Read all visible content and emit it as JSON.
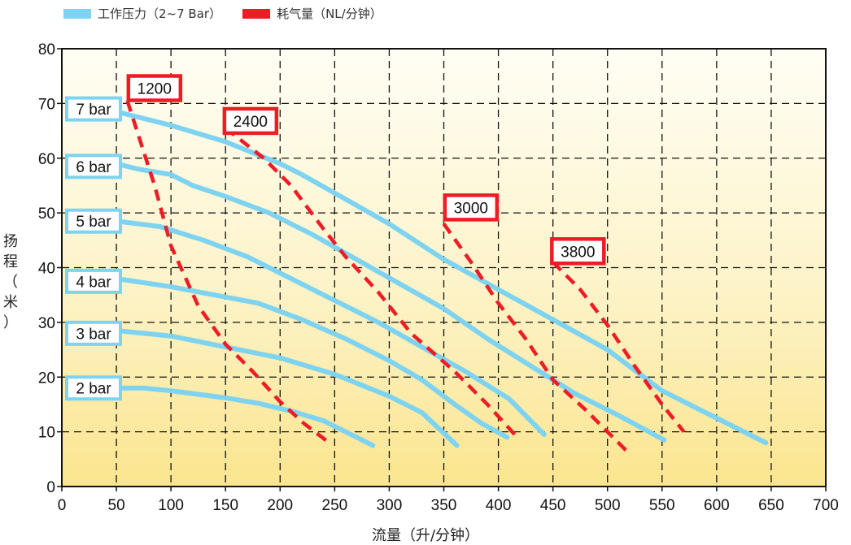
{
  "legend": {
    "pressure": {
      "label": "工作压力（2~7 Bar）",
      "color": "#7dd3f0"
    },
    "air": {
      "label": "耗气量（NL/分钟）",
      "color": "#ee1c25"
    }
  },
  "chart_data": {
    "type": "line",
    "xlabel": "流量（升/分钟）",
    "ylabel_chars": [
      "扬",
      "程",
      "（",
      "米",
      "）"
    ],
    "xlim": [
      0,
      700
    ],
    "ylim": [
      0,
      80
    ],
    "xticks": [
      "0",
      "50",
      "100",
      "150",
      "200",
      "250",
      "300",
      "350",
      "400",
      "450",
      "500",
      "550",
      "600",
      "650",
      "700"
    ],
    "yticks": [
      "0",
      "10",
      "20",
      "30",
      "40",
      "50",
      "60",
      "70",
      "80"
    ],
    "grid": true,
    "legend_position": "top-left",
    "series": [
      {
        "name": "2 bar",
        "group": "pressure",
        "label_at": [
          0,
          18
        ],
        "points": [
          [
            50,
            18
          ],
          [
            75,
            18
          ],
          [
            100,
            17.5
          ],
          [
            150,
            16.2
          ],
          [
            180,
            15.2
          ],
          [
            210,
            13.8
          ],
          [
            240,
            12
          ],
          [
            260,
            10
          ],
          [
            285,
            7.5
          ]
        ]
      },
      {
        "name": "3 bar",
        "group": "pressure",
        "label_at": [
          0,
          28
        ],
        "points": [
          [
            50,
            28.5
          ],
          [
            100,
            27.5
          ],
          [
            150,
            25.5
          ],
          [
            200,
            23.5
          ],
          [
            250,
            20.5
          ],
          [
            300,
            16.5
          ],
          [
            330,
            13.5
          ],
          [
            362,
            7.5
          ]
        ]
      },
      {
        "name": "4 bar",
        "group": "pressure",
        "label_at": [
          0,
          37.5
        ],
        "points": [
          [
            50,
            38
          ],
          [
            100,
            36.5
          ],
          [
            140,
            35
          ],
          [
            180,
            33.5
          ],
          [
            220,
            30.5
          ],
          [
            260,
            27
          ],
          [
            300,
            23
          ],
          [
            330,
            19.5
          ],
          [
            360,
            15
          ],
          [
            385,
            11.5
          ],
          [
            408,
            9
          ]
        ]
      },
      {
        "name": "5 bar",
        "group": "pressure",
        "label_at": [
          0,
          48.5
        ],
        "points": [
          [
            50,
            48.5
          ],
          [
            90,
            47.5
          ],
          [
            130,
            45
          ],
          [
            170,
            42
          ],
          [
            210,
            38
          ],
          [
            250,
            34
          ],
          [
            290,
            30
          ],
          [
            330,
            25.5
          ],
          [
            370,
            21
          ],
          [
            410,
            16
          ],
          [
            442,
            9.5
          ]
        ]
      },
      {
        "name": "6 bar",
        "group": "pressure",
        "label_at": [
          0,
          58.5
        ],
        "points": [
          [
            50,
            59
          ],
          [
            70,
            58
          ],
          [
            100,
            57
          ],
          [
            120,
            55
          ],
          [
            150,
            53
          ],
          [
            190,
            50
          ],
          [
            230,
            46
          ],
          [
            270,
            41.5
          ],
          [
            310,
            37
          ],
          [
            350,
            32.5
          ],
          [
            390,
            27
          ],
          [
            430,
            22
          ],
          [
            470,
            17
          ],
          [
            510,
            13
          ],
          [
            552,
            8.5
          ]
        ]
      },
      {
        "name": "7 bar",
        "group": "pressure",
        "label_at": [
          0,
          69
        ],
        "points": [
          [
            50,
            68.5
          ],
          [
            100,
            66
          ],
          [
            150,
            63
          ],
          [
            200,
            59
          ],
          [
            220,
            57
          ],
          [
            260,
            52.5
          ],
          [
            300,
            48
          ],
          [
            350,
            41.5
          ],
          [
            400,
            36
          ],
          [
            450,
            30.5
          ],
          [
            500,
            25
          ],
          [
            550,
            17.5
          ],
          [
            600,
            12.5
          ],
          [
            645,
            8
          ]
        ]
      },
      {
        "name": "1200",
        "group": "air",
        "label_at": [
          61,
          72.8
        ],
        "points": [
          [
            60,
            70.5
          ],
          [
            85,
            55
          ],
          [
            100,
            44
          ],
          [
            125,
            33
          ],
          [
            150,
            26
          ],
          [
            175,
            21
          ],
          [
            200,
            15.5
          ],
          [
            222,
            11.5
          ],
          [
            245,
            8
          ]
        ]
      },
      {
        "name": "2400",
        "group": "air",
        "label_at": [
          149,
          66.8
        ],
        "points": [
          [
            150,
            65.5
          ],
          [
            185,
            60
          ],
          [
            210,
            55
          ],
          [
            240,
            47
          ],
          [
            260,
            42
          ],
          [
            290,
            35.5
          ],
          [
            320,
            28
          ],
          [
            360,
            21
          ],
          [
            390,
            15
          ],
          [
            415,
            9.5
          ]
        ]
      },
      {
        "name": "3000",
        "group": "air",
        "label_at": [
          351,
          51
        ],
        "points": [
          [
            350,
            48
          ],
          [
            375,
            41
          ],
          [
            400,
            33.5
          ],
          [
            425,
            27
          ],
          [
            450,
            19.5
          ],
          [
            480,
            14
          ],
          [
            500,
            10
          ],
          [
            520,
            6
          ]
        ]
      },
      {
        "name": "3800",
        "group": "air",
        "label_at": [
          449,
          43
        ],
        "points": [
          [
            450,
            41
          ],
          [
            475,
            36
          ],
          [
            500,
            29.5
          ],
          [
            525,
            22
          ],
          [
            550,
            15
          ],
          [
            570,
            10
          ]
        ]
      }
    ]
  }
}
